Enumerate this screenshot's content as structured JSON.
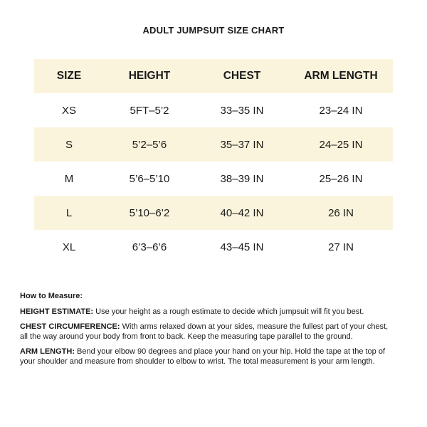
{
  "title": "ADULT JUMPSUIT SIZE CHART",
  "table": {
    "headers": [
      "SIZE",
      "HEIGHT",
      "CHEST",
      "ARM LENGTH"
    ],
    "rows": [
      [
        "XS",
        "5FT–5’2",
        "33–35 IN",
        "23–24 IN"
      ],
      [
        "S",
        "5’2–5’6",
        "35–37 IN",
        "24–25 IN"
      ],
      [
        "M",
        "5’6–5’10",
        "38–39 IN",
        "25–26 IN"
      ],
      [
        "L",
        "5’10–6’2",
        "40–42 IN",
        "26 IN"
      ],
      [
        "XL",
        "6’3–6’6",
        "43–45 IN",
        "27 IN"
      ]
    ]
  },
  "notes": {
    "heading": "How to Measure:",
    "items": [
      {
        "label": "HEIGHT ESTIMATE:",
        "text": " Use your height as a rough estimate to decide which jumpsuit will fit you best."
      },
      {
        "label": "CHEST CIRCUMFERENCE:",
        "text": " With arms relaxed down at your sides, measure the fullest part of your chest, all the way around your body from front to back. Keep the measuring tape parallel to the ground."
      },
      {
        "label": "ARM LENGTH:",
        "text": " Bend your elbow 90 degrees and place your hand on your hip. Hold the tape at the top of your shoulder and measure from shoulder to elbow to wrist. The total measurement is your arm length."
      }
    ]
  },
  "colors": {
    "band": "#fbf4dc",
    "text": "#1a1a1a"
  }
}
